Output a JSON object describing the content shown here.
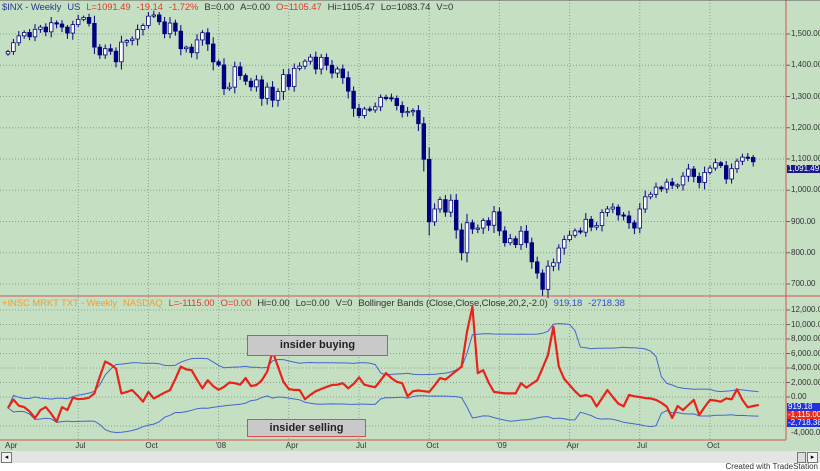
{
  "colors": {
    "background": "#c5dfc3",
    "up_candle": "#ffffff",
    "down_candle": "#000080",
    "indicator": "#e8231a",
    "bands": "#4466cc",
    "frame": "#d65050"
  },
  "price_header": {
    "symbol": "$INX - Weekly",
    "exchange": "US",
    "last": "L=1091.49",
    "change": "-19.14",
    "pct": "-1.72%",
    "bid": "B=0.00",
    "ask": "A=0.00",
    "open": "O=1105.47",
    "high": "Hi=1105.47",
    "low": "Lo=1083.74",
    "volume": "V=0"
  },
  "indicator_header": {
    "symbol": "+INSC MRKT TXT - Weekly",
    "exchange": "NASDAQ",
    "last": "L=-1115.00",
    "open": "O=0.00",
    "high": "Hi=0.00",
    "low": "Lo=0.00",
    "volume": "V=0",
    "study": "Bollinger Bands (Close,Close,Close,20,2,-2.0)",
    "upper": "919.18",
    "lower": "-2718.38"
  },
  "annotations": {
    "buying": "insider buying",
    "selling": "insider selling"
  },
  "credit": "Created with TradeStation",
  "chart_data": [
    {
      "type": "candlestick",
      "title": "$INX - Weekly",
      "x_ticks": [
        "Apr",
        "Jul",
        "Oct",
        "'08",
        "Apr",
        "Jul",
        "Oct",
        "'09",
        "Apr",
        "Jul",
        "Oct"
      ],
      "y_ticks": [
        "1,500.00",
        "1,400.00",
        "1,300.00",
        "1,200.00",
        "1,100.00",
        "1,000.00",
        "900.00",
        "800.00",
        "700.00"
      ],
      "ylim": [
        690,
        1600
      ],
      "grid": true,
      "last_value_label": "1,091.49",
      "closes": [
        1444,
        1472,
        1494,
        1505,
        1491,
        1515,
        1522,
        1507,
        1536,
        1532,
        1522,
        1503,
        1530,
        1547,
        1553,
        1534,
        1458,
        1433,
        1453,
        1445,
        1411,
        1474,
        1479,
        1484,
        1514,
        1527,
        1557,
        1561,
        1539,
        1501,
        1535,
        1509,
        1453,
        1458,
        1440,
        1481,
        1504,
        1468,
        1411,
        1401,
        1325,
        1330,
        1395,
        1367,
        1349,
        1331,
        1353,
        1294,
        1330,
        1288,
        1316,
        1370,
        1332,
        1390,
        1397,
        1413,
        1426,
        1388,
        1425,
        1400,
        1375,
        1388,
        1360,
        1317,
        1262,
        1239,
        1260,
        1257,
        1267,
        1297,
        1296,
        1294,
        1271,
        1249,
        1252,
        1255,
        1213,
        1099,
        899,
        940,
        970,
        930,
        968,
        873,
        800,
        896,
        876,
        879,
        903,
        888,
        931,
        870,
        832,
        845,
        826,
        869,
        832,
        771,
        735,
        683,
        757,
        768,
        815,
        842,
        856,
        870,
        866,
        907,
        882,
        887,
        929,
        940,
        946,
        921,
        918,
        896,
        879,
        940,
        979,
        987,
        1010,
        1004,
        1026,
        1016,
        1017,
        1045,
        1068,
        1044,
        1025,
        1057,
        1071,
        1088,
        1079,
        1036,
        1069,
        1093,
        1106,
        1105,
        1091
      ]
    },
    {
      "type": "line",
      "title": "+INSC MRKT TXT - Weekly",
      "y_ticks": [
        "12,000.00",
        "10,000.00",
        "8,000.00",
        "6,000.00",
        "4,000.00",
        "2,000.00",
        "0.00",
        "-4,000.00"
      ],
      "ylim": [
        -5800,
        13000
      ],
      "grid": true,
      "bollinger": {
        "length": 20,
        "upper_dev": 2,
        "lower_dev": -2
      },
      "value_labels": {
        "upper": "919.18",
        "last": "-1,115.00",
        "lower": "-2,718.38"
      },
      "values": [
        -1500,
        -350,
        -1200,
        -1400,
        -2000,
        -2900,
        -1800,
        -1400,
        -2300,
        -3400,
        -1400,
        -1800,
        -100,
        -300,
        -250,
        -100,
        500,
        2800,
        4900,
        4500,
        3900,
        500,
        700,
        950,
        200,
        -650,
        700,
        -200,
        200,
        600,
        950,
        2500,
        4200,
        3800,
        3700,
        2400,
        1200,
        2300,
        1500,
        1000,
        1400,
        2000,
        1900,
        1700,
        2600,
        1500,
        1650,
        2300,
        3500,
        6300,
        4200,
        2100,
        1100,
        970,
        970,
        -300,
        300,
        800,
        1100,
        1400,
        1650,
        1700,
        1900,
        1200,
        1800,
        2700,
        1700,
        1500,
        1350,
        2300,
        3300,
        2600,
        2100,
        1900,
        100,
        800,
        900,
        800,
        700,
        1600,
        2600,
        2400,
        3000,
        3600,
        4200,
        9000,
        12450,
        3300,
        3700,
        2000,
        700,
        600,
        500,
        500,
        500,
        1900,
        1300,
        1800,
        2300,
        4000,
        5800,
        9700,
        4200,
        2500,
        1650,
        800,
        100,
        280,
        0,
        -1300,
        -200,
        970,
        0,
        -900,
        -1300,
        280,
        100,
        0,
        -150,
        -200,
        -400,
        -800,
        -1340,
        -2900,
        -1240,
        -1800,
        -1100,
        -400,
        -2480,
        -1400,
        -400,
        -500,
        -650,
        -200,
        -320,
        1060,
        -400,
        -1420,
        -1240,
        -1115
      ]
    }
  ]
}
